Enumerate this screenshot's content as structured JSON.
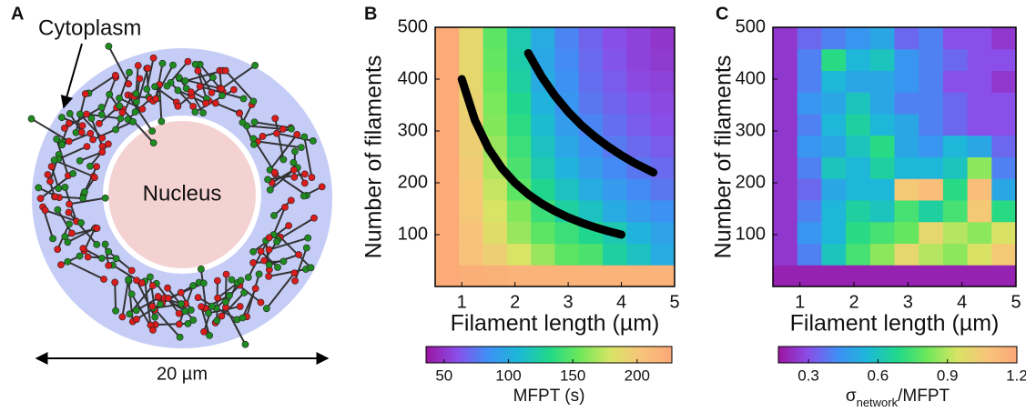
{
  "panel_a": {
    "label": "A",
    "cytoplasm": "Cytoplasm",
    "nucleus": "Nucleus",
    "scale": "20 µm"
  },
  "chart_data": [
    {
      "panel": "B",
      "type": "heatmap",
      "xlabel": "Filament length (µm)",
      "ylabel": "Number of filaments",
      "xlim": [
        0.5,
        5
      ],
      "ylim": [
        0,
        500
      ],
      "xticks": [
        1,
        2,
        3,
        4,
        5
      ],
      "yticks": [
        100,
        200,
        300,
        400,
        500
      ],
      "x_bins": [
        0.5,
        0.95,
        1.4,
        1.85,
        2.3,
        2.75,
        3.2,
        3.65,
        4.1,
        4.55,
        5
      ],
      "y_bins": [
        0,
        41.7,
        83.3,
        125,
        166.7,
        208.3,
        250,
        291.7,
        333.3,
        375,
        416.7,
        458.3,
        500
      ],
      "z": [
        [
          225,
          222,
          220,
          218,
          218,
          218,
          218,
          218,
          218,
          218
        ],
        [
          225,
          205,
          195,
          180,
          165,
          150,
          145,
          125,
          115,
          100
        ],
        [
          225,
          205,
          185,
          165,
          150,
          140,
          130,
          120,
          105,
          95
        ],
        [
          225,
          200,
          180,
          160,
          140,
          125,
          115,
          100,
          90,
          85
        ],
        [
          225,
          200,
          175,
          150,
          130,
          115,
          100,
          90,
          82,
          75
        ],
        [
          225,
          198,
          170,
          145,
          120,
          105,
          92,
          82,
          75,
          70
        ],
        [
          225,
          195,
          165,
          140,
          115,
          98,
          85,
          76,
          70,
          65
        ],
        [
          225,
          195,
          160,
          135,
          110,
          92,
          80,
          72,
          65,
          60
        ],
        [
          225,
          192,
          158,
          130,
          105,
          88,
          75,
          68,
          62,
          58
        ],
        [
          225,
          190,
          155,
          125,
          100,
          85,
          72,
          65,
          58,
          55
        ],
        [
          225,
          190,
          152,
          122,
          98,
          82,
          70,
          62,
          55,
          52
        ],
        [
          225,
          190,
          150,
          120,
          100,
          80,
          68,
          60,
          55,
          50
        ]
      ],
      "clim": [
        36,
        227
      ],
      "cticks": [
        50,
        100,
        150,
        200
      ],
      "colorbar_label": [
        "MFPT (s)"
      ],
      "colormap": [
        "#9a14a0",
        "#8a4ee8",
        "#3f8ff5",
        "#1cb8d8",
        "#20d88a",
        "#6ee85a",
        "#d8e464",
        "#f8c47a",
        "#fba878"
      ],
      "series": [
        {
          "color": "#000000",
          "x": [
            1,
            1.25,
            1.5,
            1.75,
            2,
            2.25,
            2.5,
            2.75,
            3,
            3.25,
            3.5,
            3.75,
            4
          ],
          "values": [
            400,
            320,
            266.7,
            228.6,
            200,
            177.8,
            160,
            145.5,
            133.3,
            123.1,
            114.3,
            106.7,
            100
          ]
        },
        {
          "color": "#000000",
          "x": [
            2.25,
            2.5,
            2.75,
            3,
            3.25,
            3.5,
            3.75,
            4,
            4.25,
            4.6
          ],
          "values": [
            450,
            405,
            368,
            337,
            311,
            289,
            270,
            253,
            238,
            220
          ]
        }
      ]
    },
    {
      "panel": "C",
      "type": "heatmap",
      "xlabel": "Filament length (µm)",
      "ylabel": "Number of filaments",
      "xlim": [
        0.5,
        5
      ],
      "ylim": [
        0,
        500
      ],
      "xticks": [
        1,
        2,
        3,
        4,
        5
      ],
      "yticks": [
        100,
        200,
        300,
        400,
        500
      ],
      "x_bins": [
        0.5,
        0.95,
        1.4,
        1.85,
        2.3,
        2.75,
        3.2,
        3.65,
        4.1,
        4.55,
        5
      ],
      "y_bins": [
        0,
        41.7,
        83.3,
        125,
        166.7,
        208.3,
        250,
        291.7,
        333.3,
        375,
        416.7,
        458.3,
        500
      ],
      "z": [
        [
          0.2,
          0.2,
          0.2,
          0.2,
          0.2,
          0.2,
          0.2,
          0.2,
          0.2,
          0.2
        ],
        [
          0.25,
          0.4,
          0.6,
          0.75,
          0.85,
          1.0,
          0.9,
          0.85,
          0.95,
          1.05
        ],
        [
          0.25,
          0.45,
          0.55,
          0.7,
          0.75,
          0.8,
          1.0,
          0.9,
          0.85,
          0.95
        ],
        [
          0.25,
          0.4,
          0.55,
          0.65,
          0.6,
          0.75,
          0.65,
          0.75,
          1.05,
          0.7
        ],
        [
          0.25,
          0.35,
          0.5,
          0.55,
          0.55,
          1.05,
          1.1,
          0.7,
          1.1,
          0.5
        ],
        [
          0.25,
          0.4,
          0.6,
          0.55,
          0.65,
          0.55,
          0.55,
          0.6,
          0.85,
          0.4
        ],
        [
          0.25,
          0.45,
          0.5,
          0.6,
          0.7,
          0.5,
          0.45,
          0.55,
          0.5,
          0.35
        ],
        [
          0.25,
          0.4,
          0.55,
          0.65,
          0.55,
          0.5,
          0.4,
          0.35,
          0.3,
          0.3
        ],
        [
          0.25,
          0.45,
          0.5,
          0.6,
          0.5,
          0.4,
          0.4,
          0.35,
          0.3,
          0.3
        ],
        [
          0.25,
          0.4,
          0.55,
          0.5,
          0.5,
          0.45,
          0.4,
          0.3,
          0.3,
          0.25
        ],
        [
          0.25,
          0.4,
          0.7,
          0.55,
          0.6,
          0.45,
          0.4,
          0.35,
          0.3,
          0.3
        ],
        [
          0.25,
          0.35,
          0.4,
          0.45,
          0.5,
          0.35,
          0.4,
          0.3,
          0.3,
          0.25
        ]
      ],
      "clim": [
        0.17,
        1.2
      ],
      "cticks": [
        0.3,
        0.6,
        0.9,
        1.2
      ],
      "colorbar_label": [
        "σ",
        "network",
        "/MFPT"
      ],
      "colormap": [
        "#9a14a0",
        "#8a4ee8",
        "#3f8ff5",
        "#1cb8d8",
        "#20d88a",
        "#6ee85a",
        "#d8e464",
        "#f8c47a",
        "#fba878"
      ]
    }
  ]
}
